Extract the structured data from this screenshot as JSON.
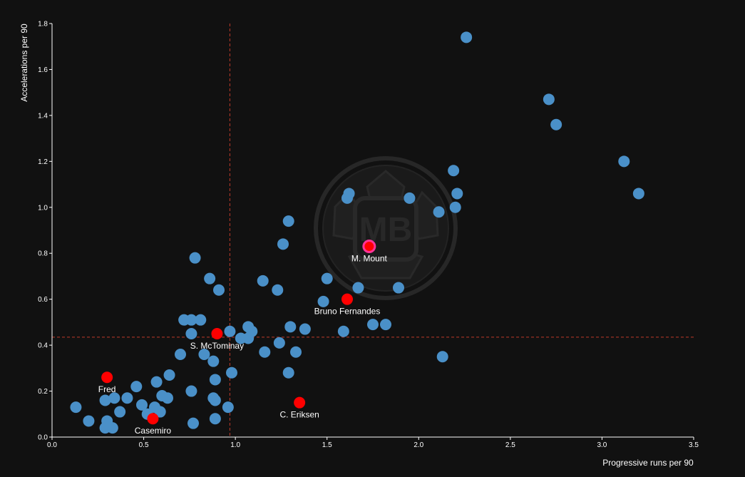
{
  "chart_data": {
    "type": "scatter",
    "title": "",
    "xlabel": "Progressive runs per 90",
    "ylabel": "Accelerations per 90",
    "xlim": [
      0,
      3.5
    ],
    "ylim": [
      0,
      1.8
    ],
    "xticks": [
      0.0,
      0.5,
      1.0,
      1.5,
      2.0,
      2.5,
      3.0,
      3.5
    ],
    "xtick_labels": [
      "0.0",
      "0.5",
      "1.0",
      "1.5",
      "2.0",
      "2.5",
      "3.0",
      "3.5"
    ],
    "yticks": [
      0.0,
      0.2,
      0.4,
      0.6,
      0.8,
      1.0,
      1.2,
      1.4,
      1.6,
      1.8
    ],
    "ytick_labels": [
      "0.0",
      "0.2",
      "0.4",
      "0.6",
      "0.8",
      "1.0",
      "1.2",
      "1.4",
      "1.6",
      "1.8"
    ],
    "grid": false,
    "reference_lines": {
      "x": 0.97,
      "y": 0.435,
      "color": "#c0392b",
      "style": "dashed"
    },
    "colors": {
      "background": "#111111",
      "other": "#4a90c8",
      "highlight": "#ff0000",
      "focus_ring": "#ff3399",
      "axis": "#ffffff"
    },
    "watermark": "MB",
    "series": [
      {
        "role": "other",
        "points": [
          [
            2.26,
            1.74
          ],
          [
            2.71,
            1.47
          ],
          [
            2.75,
            1.36
          ],
          [
            3.12,
            1.2
          ],
          [
            3.2,
            1.06
          ],
          [
            2.19,
            1.16
          ],
          [
            2.21,
            1.06
          ],
          [
            2.2,
            1.0
          ],
          [
            2.11,
            0.98
          ],
          [
            1.95,
            1.04
          ],
          [
            1.62,
            1.06
          ],
          [
            1.61,
            1.04
          ],
          [
            1.29,
            0.94
          ],
          [
            1.26,
            0.84
          ],
          [
            0.78,
            0.78
          ],
          [
            0.86,
            0.69
          ],
          [
            0.91,
            0.64
          ],
          [
            1.15,
            0.68
          ],
          [
            1.23,
            0.64
          ],
          [
            1.5,
            0.69
          ],
          [
            1.67,
            0.65
          ],
          [
            1.89,
            0.65
          ],
          [
            1.48,
            0.59
          ],
          [
            0.72,
            0.51
          ],
          [
            0.76,
            0.51
          ],
          [
            0.81,
            0.51
          ],
          [
            0.76,
            0.45
          ],
          [
            0.97,
            0.46
          ],
          [
            1.07,
            0.48
          ],
          [
            1.09,
            0.46
          ],
          [
            1.03,
            0.43
          ],
          [
            1.07,
            0.43
          ],
          [
            1.3,
            0.48
          ],
          [
            1.38,
            0.47
          ],
          [
            1.59,
            0.46
          ],
          [
            1.75,
            0.49
          ],
          [
            1.82,
            0.49
          ],
          [
            1.24,
            0.41
          ],
          [
            0.7,
            0.36
          ],
          [
            0.83,
            0.36
          ],
          [
            0.88,
            0.33
          ],
          [
            1.16,
            0.37
          ],
          [
            1.33,
            0.37
          ],
          [
            2.13,
            0.35
          ],
          [
            0.64,
            0.27
          ],
          [
            0.89,
            0.25
          ],
          [
            0.98,
            0.28
          ],
          [
            1.29,
            0.28
          ],
          [
            0.46,
            0.22
          ],
          [
            0.57,
            0.24
          ],
          [
            0.76,
            0.2
          ],
          [
            0.34,
            0.17
          ],
          [
            0.41,
            0.17
          ],
          [
            0.6,
            0.18
          ],
          [
            0.63,
            0.17
          ],
          [
            0.88,
            0.17
          ],
          [
            0.89,
            0.16
          ],
          [
            0.96,
            0.13
          ],
          [
            0.13,
            0.13
          ],
          [
            0.29,
            0.16
          ],
          [
            0.37,
            0.11
          ],
          [
            0.49,
            0.14
          ],
          [
            0.56,
            0.13
          ],
          [
            0.59,
            0.11
          ],
          [
            0.52,
            0.1
          ],
          [
            0.2,
            0.07
          ],
          [
            0.3,
            0.07
          ],
          [
            0.29,
            0.04
          ],
          [
            0.33,
            0.04
          ],
          [
            0.77,
            0.06
          ],
          [
            0.89,
            0.08
          ]
        ]
      },
      {
        "role": "highlight",
        "points": [
          {
            "name": "M. Mount",
            "x": 1.73,
            "y": 0.83,
            "focus": true
          },
          {
            "name": "Bruno Fernandes",
            "x": 1.61,
            "y": 0.6
          },
          {
            "name": "S. McTominay",
            "x": 0.9,
            "y": 0.45
          },
          {
            "name": "Fred",
            "x": 0.3,
            "y": 0.26
          },
          {
            "name": "Casemiro",
            "x": 0.55,
            "y": 0.08
          },
          {
            "name": "C. Eriksen",
            "x": 1.35,
            "y": 0.15
          }
        ]
      }
    ]
  }
}
